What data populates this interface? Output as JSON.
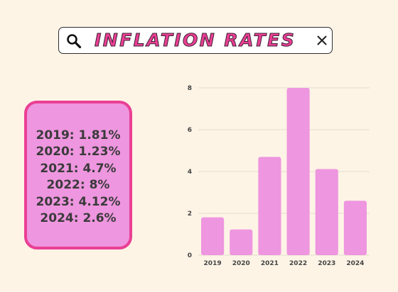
{
  "search": {
    "title": "INFLATION RATES",
    "icon": "search-icon",
    "close_icon": "close-icon"
  },
  "stats_card": {
    "lines": [
      "2019: 1.81%",
      "2020: 1.23%",
      "2021: 4.7%",
      "2022: 8%",
      "2023: 4.12%",
      "2024: 2.6%"
    ]
  },
  "colors": {
    "background": "#fdf4e6",
    "bar": "#ee96df",
    "card_fill": "#ee96df",
    "card_border": "#ea3f94",
    "title_pink": "#ea3f94"
  },
  "chart_data": {
    "type": "bar",
    "categories": [
      "2019",
      "2020",
      "2021",
      "2022",
      "2023",
      "2024"
    ],
    "values": [
      1.81,
      1.23,
      4.7,
      8,
      4.12,
      2.6
    ],
    "yticks": [
      "0",
      "2",
      "4",
      "6",
      "8"
    ],
    "ylim": [
      0,
      8
    ],
    "grid": true,
    "legend": "none"
  }
}
